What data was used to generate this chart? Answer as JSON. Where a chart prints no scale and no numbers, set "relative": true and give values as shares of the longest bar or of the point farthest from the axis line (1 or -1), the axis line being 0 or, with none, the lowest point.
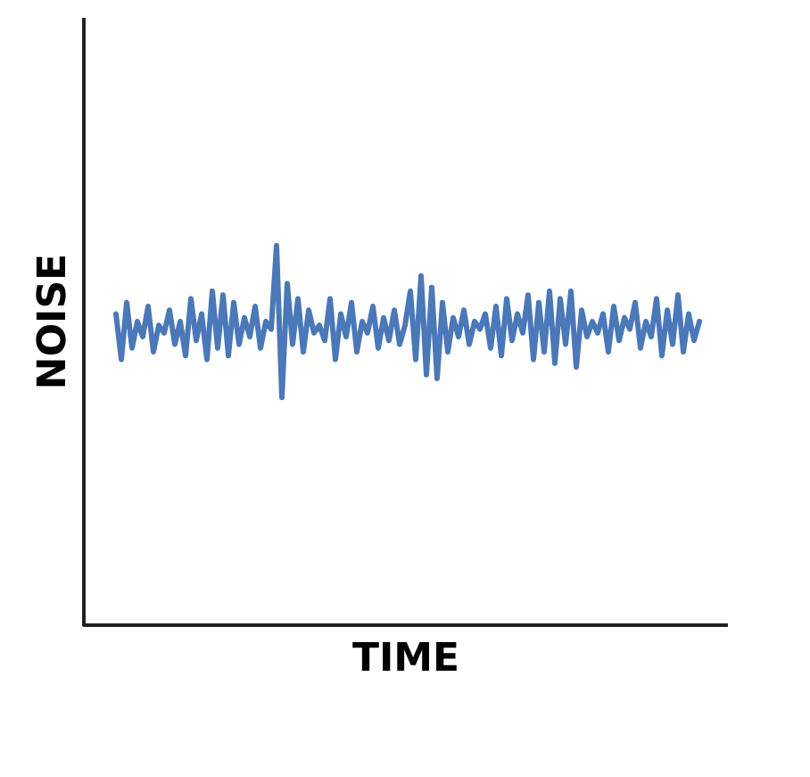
{
  "chart_data": {
    "type": "line",
    "relative": true,
    "xlabel": "TIME",
    "ylabel": "NOISE",
    "marker": "none",
    "categories": [
      null,
      null,
      null,
      null,
      null,
      null,
      null,
      null,
      null,
      null,
      null,
      null,
      null,
      null,
      null,
      null,
      null,
      null,
      null,
      null,
      null,
      null,
      null,
      null,
      null,
      null,
      null,
      null,
      null,
      null,
      null,
      null,
      null,
      null,
      null,
      null,
      null,
      null,
      null,
      null,
      null,
      null,
      null,
      null,
      null,
      null,
      null,
      null,
      null,
      null,
      null,
      null,
      null,
      null,
      null,
      null,
      null,
      null,
      null,
      null,
      null,
      null,
      null,
      null,
      null,
      null,
      null,
      null,
      null,
      null,
      null,
      null,
      null,
      null,
      null,
      null,
      null,
      null,
      null,
      null,
      null,
      null,
      null,
      null,
      null,
      null,
      null,
      null,
      null,
      null,
      null,
      null,
      null,
      null,
      null,
      null,
      null,
      null,
      null,
      null,
      null,
      null,
      null,
      null,
      null,
      null,
      null,
      null,
      null,
      null
    ],
    "series": [
      {
        "color": "#4a78b8",
        "values": [
          0.82,
          0.7,
          0.85,
          0.73,
          0.8,
          0.76,
          0.84,
          0.72,
          0.79,
          0.77,
          0.83,
          0.74,
          0.8,
          0.71,
          0.86,
          0.75,
          0.82,
          0.7,
          0.88,
          0.73,
          0.87,
          0.71,
          0.85,
          0.74,
          0.81,
          0.76,
          0.84,
          0.73,
          0.8,
          0.78,
          1.0,
          0.6,
          0.9,
          0.74,
          0.86,
          0.72,
          0.83,
          0.77,
          0.79,
          0.75,
          0.86,
          0.7,
          0.82,
          0.76,
          0.85,
          0.72,
          0.8,
          0.77,
          0.84,
          0.73,
          0.81,
          0.75,
          0.83,
          0.74,
          0.79,
          0.88,
          0.7,
          0.92,
          0.66,
          0.89,
          0.65,
          0.85,
          0.72,
          0.81,
          0.76,
          0.83,
          0.74,
          0.8,
          0.78,
          0.82,
          0.73,
          0.84,
          0.71,
          0.86,
          0.75,
          0.82,
          0.77,
          0.87,
          0.7,
          0.85,
          0.72,
          0.88,
          0.69,
          0.86,
          0.74,
          0.88,
          0.68,
          0.83,
          0.76,
          0.8,
          0.77,
          0.82,
          0.72,
          0.84,
          0.75,
          0.81,
          0.78,
          0.85,
          0.73,
          0.8,
          0.76,
          0.86,
          0.71,
          0.83,
          0.74,
          0.87,
          0.72,
          0.82,
          0.75,
          0.8
        ]
      }
    ]
  }
}
